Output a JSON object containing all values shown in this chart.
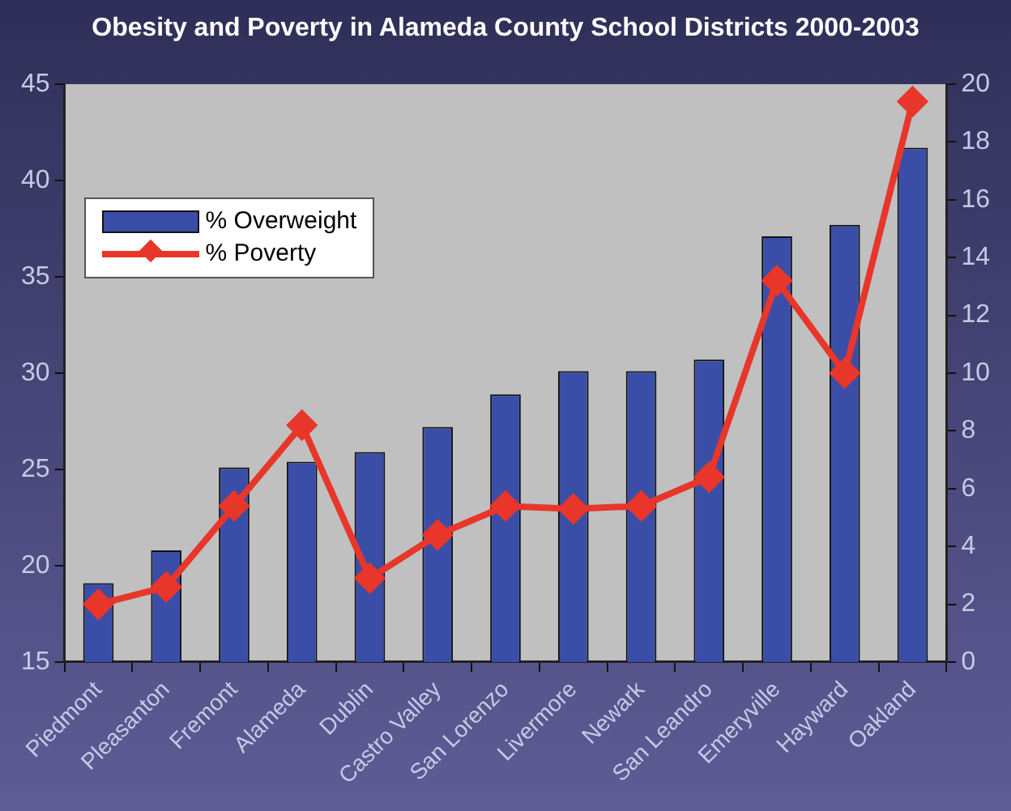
{
  "chart_data": {
    "type": "bar",
    "title": "Obesity and Poverty in Alameda County School Districts 2000-2003",
    "categories": [
      "Piedmont",
      "Pleasanton",
      "Fremont",
      "Alameda",
      "Dublin",
      "Castro Valley",
      "San Lorenzo",
      "Livermore",
      "Newark",
      "San Leandro",
      "Emeryville",
      "Hayward",
      "Oakland"
    ],
    "series": [
      {
        "name": "% Overweight",
        "type": "bar",
        "color": "#3a4ea8",
        "values": [
          19.1,
          20.8,
          25.1,
          25.4,
          25.9,
          27.2,
          28.9,
          30.1,
          30.1,
          30.7,
          37.1,
          37.7,
          41.7
        ]
      },
      {
        "name": "% Poverty",
        "type": "line",
        "axis": "y2",
        "color": "#e8362a",
        "marker": "diamond",
        "values": [
          2.0,
          2.6,
          5.4,
          8.2,
          2.9,
          4.4,
          5.4,
          5.3,
          5.4,
          6.4,
          13.2,
          10.0,
          19.4
        ]
      }
    ],
    "ylim": [
      15,
      45
    ],
    "yticks": [
      15,
      20,
      25,
      30,
      35,
      40,
      45
    ],
    "y2lim": [
      0,
      20
    ],
    "y2ticks": [
      0,
      2,
      4,
      6,
      8,
      10,
      12,
      14,
      16,
      18,
      20
    ],
    "grid": false,
    "legend": "top left"
  }
}
